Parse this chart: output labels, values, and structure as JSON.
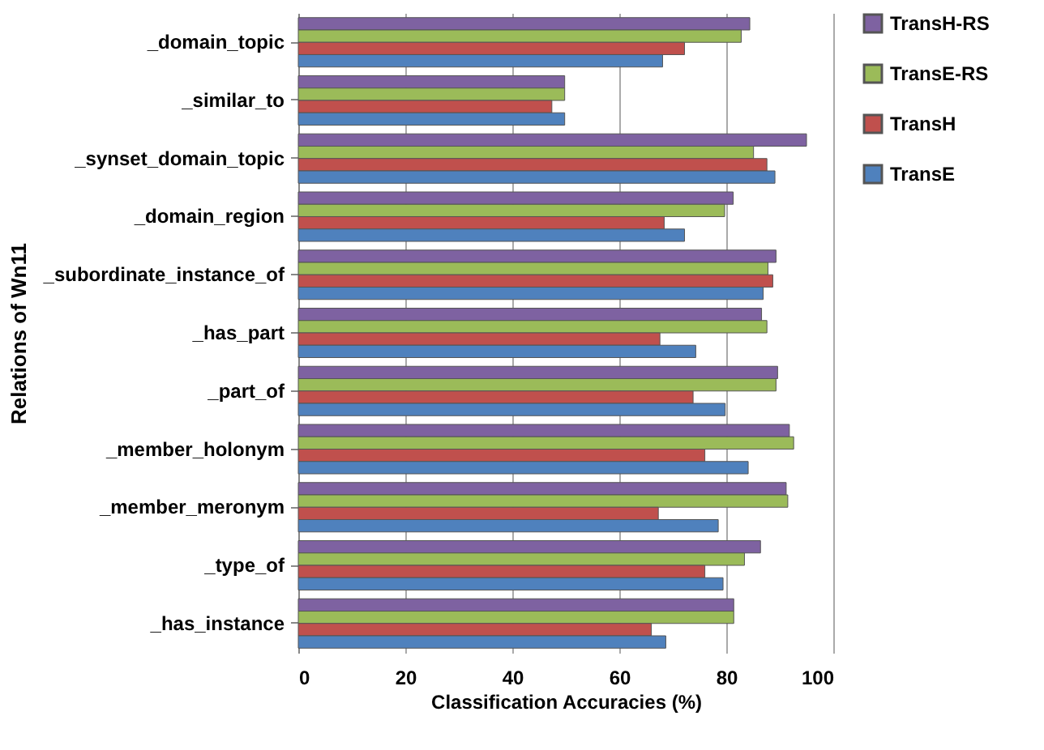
{
  "chart_data": {
    "type": "bar",
    "orientation": "horizontal",
    "xlabel": "Classification Accuracies (%)",
    "ylabel": "Relations of Wn11",
    "categories": [
      "_domain_topic",
      "_similar_to",
      "_synset_domain_topic",
      "_domain_region",
      "_subordinate_instance_of",
      "_has_part",
      "_part_of",
      "_member_holonym",
      "_member_meronym",
      "_type_of",
      "_has_instance"
    ],
    "series": [
      {
        "name": "TransH-RS",
        "color": "#7e62a1",
        "values": [
          84.4,
          49.8,
          95,
          81.3,
          89.3,
          86.6,
          89.6,
          91.8,
          91.2,
          86.4,
          81.4
        ]
      },
      {
        "name": "TransE-RS",
        "color": "#9bbb59",
        "values": [
          82.8,
          49.8,
          85.1,
          79.7,
          87.8,
          87.6,
          89.3,
          92.6,
          91.5,
          83.4,
          81.4
        ]
      },
      {
        "name": "TransH",
        "color": "#c0504d",
        "values": [
          72.2,
          47.4,
          87.6,
          68.4,
          88.7,
          67.6,
          73.8,
          76,
          67.3,
          76,
          66
        ]
      },
      {
        "name": "TransE",
        "color": "#4f81bd",
        "values": [
          68.1,
          49.8,
          89.1,
          72.2,
          86.9,
          74.3,
          79.8,
          84.1,
          78.5,
          79.4,
          68.7
        ]
      }
    ],
    "xlim": [
      0,
      100
    ],
    "xticks": [
      0,
      20,
      40,
      60,
      80,
      100
    ],
    "grid": "x",
    "legend": "right"
  }
}
